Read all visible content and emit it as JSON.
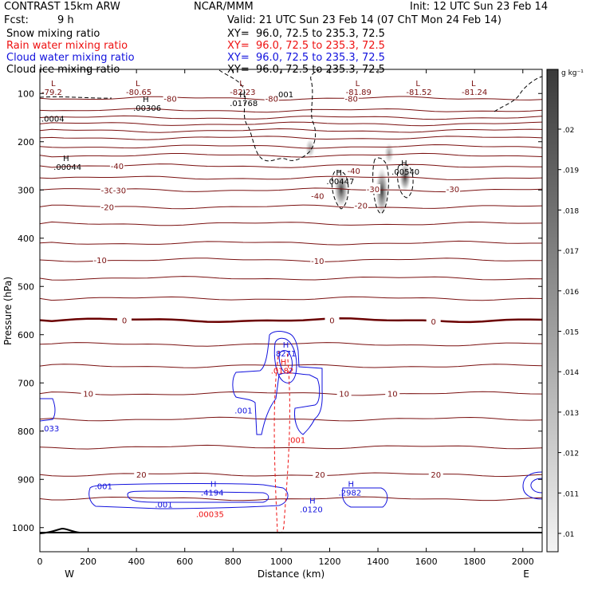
{
  "header": {
    "model": "CONTRAST 15km ARW",
    "org": "NCAR/MMM",
    "init": "Init: 12 UTC Sun 23 Feb 14",
    "fcst_label": "Fcst:",
    "fcst_value": "9 h",
    "valid": "Valid: 21 UTC Sun 23 Feb 14 (07 ChT Mon 24 Feb 14)",
    "fields": [
      {
        "name": "Snow mixing ratio",
        "xy": "XY=  96.0, 72.5 to 235.3, 72.5",
        "color": "#000000"
      },
      {
        "name": "Rain water mixing ratio",
        "xy": "XY=  96.0, 72.5 to 235.3, 72.5",
        "color": "#ee1111"
      },
      {
        "name": "Cloud water mixing ratio",
        "xy": "XY=  96.0, 72.5 to 235.3, 72.5",
        "color": "#1111dd"
      },
      {
        "name": "Cloud ice mixing ratio",
        "xy": "XY=  96.0, 72.5 to 235.3, 72.5",
        "color": "#000000"
      }
    ]
  },
  "chart_data": {
    "type": "cross-section",
    "xlabel": "Distance (km)",
    "ylabel": "Pressure (hPa)",
    "xlim": [
      0,
      2080
    ],
    "ylim": [
      1050,
      50
    ],
    "x_ticks": [
      0,
      200,
      400,
      600,
      800,
      1000,
      1200,
      1400,
      1600,
      1800,
      2000
    ],
    "y_ticks": [
      100,
      200,
      300,
      400,
      500,
      600,
      700,
      800,
      900,
      1000
    ],
    "x_end_labels": {
      "left": "W",
      "right": "E"
    },
    "colorbar": {
      "unit": "g kg⁻¹",
      "ticks": [
        ".02",
        ".019",
        ".018",
        ".017",
        ".016",
        ".015",
        ".014",
        ".013",
        ".012",
        ".011",
        ".01"
      ]
    },
    "temperature_contours": {
      "color": "#7a1010",
      "zero_color": "#6b0000",
      "levels_hpa": [
        {
          "p": 110,
          "label": "-80",
          "lx": 960
        },
        {
          "p": 135,
          "label": "",
          "lx": null
        },
        {
          "p": 150,
          "label": "",
          "lx": null
        },
        {
          "p": 163,
          "label": "",
          "lx": null
        },
        {
          "p": 177,
          "label": "",
          "lx": null
        },
        {
          "p": 192,
          "label": "",
          "lx": null
        },
        {
          "p": 210,
          "label": "",
          "lx": null
        },
        {
          "p": 228,
          "label": "",
          "lx": null
        },
        {
          "p": 250,
          "label": "-40",
          "lx": 320
        },
        {
          "p": 275,
          "label": "",
          "lx": null
        },
        {
          "p": 300,
          "label": "-30",
          "lx": 280
        },
        {
          "p": 335,
          "label": "-20",
          "lx": 280
        },
        {
          "p": 370,
          "label": "",
          "lx": null
        },
        {
          "p": 410,
          "label": "",
          "lx": null
        },
        {
          "p": 445,
          "label": "-10",
          "lx": 250
        },
        {
          "p": 483,
          "label": "",
          "lx": null
        },
        {
          "p": 525,
          "label": "",
          "lx": null
        },
        {
          "p": 570,
          "label": "0",
          "lx": 350
        },
        {
          "p": 620,
          "label": "",
          "lx": null
        },
        {
          "p": 665,
          "label": "",
          "lx": null
        },
        {
          "p": 722,
          "label": "10",
          "lx": 200
        },
        {
          "p": 775,
          "label": "",
          "lx": null
        },
        {
          "p": 833,
          "label": "",
          "lx": null
        },
        {
          "p": 890,
          "label": "20",
          "lx": 420
        },
        {
          "p": 940,
          "label": "",
          "lx": null
        }
      ],
      "extra_labels": [
        {
          "x": 1150,
          "p": 312,
          "text": "-40"
        },
        {
          "x": 1330,
          "p": 332,
          "text": "-20"
        },
        {
          "x": 1150,
          "p": 447,
          "text": "-10"
        },
        {
          "x": 1210,
          "p": 570,
          "text": "0"
        },
        {
          "x": 1630,
          "p": 572,
          "text": "0"
        },
        {
          "x": 1260,
          "p": 722,
          "text": "10"
        },
        {
          "x": 1460,
          "p": 722,
          "text": "10"
        },
        {
          "x": 1160,
          "p": 890,
          "text": "20"
        },
        {
          "x": 1640,
          "p": 890,
          "text": "20"
        },
        {
          "x": 330,
          "p": 300,
          "text": "-30"
        },
        {
          "x": 1290,
          "p": 110,
          "text": "-80"
        },
        {
          "x": 1380,
          "p": 298,
          "text": "-30"
        },
        {
          "x": 1710,
          "p": 298,
          "text": "-30"
        },
        {
          "x": 1300,
          "p": 260,
          "text": "-40"
        },
        {
          "x": 540,
          "p": 110,
          "text": "-80"
        }
      ]
    },
    "max_labels": [
      {
        "x": 0,
        "p": 85,
        "mark": "L",
        "text": "-79.2",
        "color": "#7a1010"
      },
      {
        "x": 350,
        "p": 85,
        "mark": "L",
        "text": "-80.65",
        "color": "#7a1010"
      },
      {
        "x": 780,
        "p": 85,
        "mark": "L",
        "text": "-82.23",
        "color": "#7a1010"
      },
      {
        "x": 1260,
        "p": 85,
        "mark": "L",
        "text": "-81.89",
        "color": "#7a1010"
      },
      {
        "x": 1510,
        "p": 85,
        "mark": "L",
        "text": "-81.52",
        "color": "#7a1010"
      },
      {
        "x": 1740,
        "p": 85,
        "mark": "L",
        "text": "-81.24",
        "color": "#7a1010"
      },
      {
        "x": 970,
        "p": 90,
        "mark": "",
        "text": ".001",
        "color": "#000000"
      },
      {
        "x": 0,
        "p": 140,
        "mark": "",
        "text": ".0004",
        "color": "#000000"
      },
      {
        "x": 380,
        "p": 118,
        "mark": "H",
        "text": ".00306",
        "color": "#000000"
      },
      {
        "x": 780,
        "p": 108,
        "mark": "H",
        "text": ".01768",
        "color": "#000000"
      },
      {
        "x": 50,
        "p": 240,
        "mark": "H",
        "text": ".00044",
        "color": "#000000"
      },
      {
        "x": 1180,
        "p": 270,
        "mark": "H",
        "text": ".00447",
        "color": "#000000"
      },
      {
        "x": 1450,
        "p": 250,
        "mark": "H",
        "text": ".00540",
        "color": "#000000"
      },
      {
        "x": 960,
        "p": 627,
        "mark": "H",
        "text": ".8271",
        "color": "#1111dd"
      },
      {
        "x": 950,
        "p": 662,
        "mark": "H",
        "text": ".0182",
        "color": "#ee1111"
      },
      {
        "x": 800,
        "p": 745,
        "mark": "",
        "text": ".001",
        "color": "#1111dd"
      },
      {
        "x": 1020,
        "p": 806,
        "mark": "",
        "text": ".001",
        "color": "#ee1111"
      },
      {
        "x": 0,
        "p": 782,
        "mark": "",
        "text": ".033",
        "color": "#1111dd"
      },
      {
        "x": 220,
        "p": 902,
        "mark": "",
        "text": ".001",
        "color": "#1111dd"
      },
      {
        "x": 470,
        "p": 940,
        "mark": "",
        "text": ".001",
        "color": "#1111dd"
      },
      {
        "x": 660,
        "p": 915,
        "mark": "H",
        "text": ".4194",
        "color": "#1111dd"
      },
      {
        "x": 640,
        "p": 960,
        "mark": "",
        "text": ".00035",
        "color": "#ee1111"
      },
      {
        "x": 1070,
        "p": 950,
        "mark": "H",
        "text": ".0120",
        "color": "#1111dd"
      },
      {
        "x": 1230,
        "p": 915,
        "mark": "H",
        "text": ".2982",
        "color": "#1111dd"
      }
    ]
  }
}
